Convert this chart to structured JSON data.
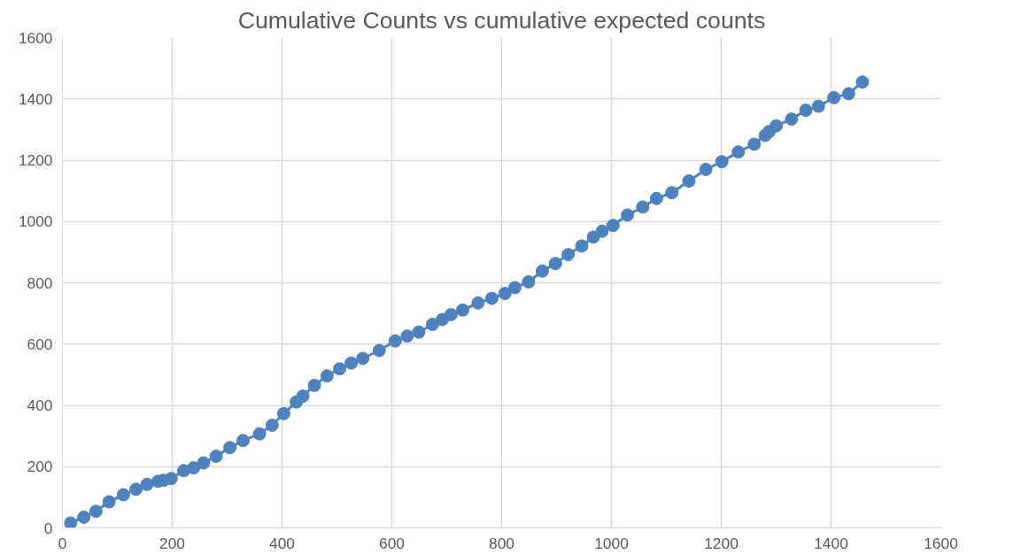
{
  "chart_data": {
    "type": "line",
    "title": "Cumulative Counts vs cumulative expected counts",
    "x": [
      15,
      39,
      61,
      85,
      111,
      134,
      154,
      174,
      184,
      198,
      221,
      239,
      257,
      280,
      305,
      329,
      359,
      382,
      403,
      426,
      438,
      459,
      482,
      505,
      526,
      547,
      577,
      606,
      628,
      649,
      674,
      692,
      708,
      729,
      757,
      782,
      806,
      824,
      849,
      874,
      898,
      921,
      946,
      967,
      983,
      1003,
      1029,
      1057,
      1082,
      1110,
      1141,
      1172,
      1201,
      1231,
      1260,
      1280,
      1287,
      1300,
      1328,
      1354,
      1377,
      1405,
      1432,
      1457
    ],
    "series": [
      {
        "color": "#4f81bd",
        "values": [
          16,
          35,
          54,
          85,
          108,
          126,
          142,
          152,
          155,
          161,
          187,
          196,
          212,
          234,
          262,
          285,
          307,
          335,
          373,
          411,
          430,
          465,
          496,
          519,
          538,
          553,
          579,
          610,
          626,
          639,
          664,
          680,
          696,
          711,
          734,
          749,
          765,
          784,
          803,
          838,
          863,
          892,
          920,
          949,
          968,
          987,
          1021,
          1047,
          1075,
          1094,
          1132,
          1170,
          1195,
          1227,
          1252,
          1281,
          1293,
          1312,
          1334,
          1363,
          1376,
          1404,
          1417,
          1455
        ]
      }
    ],
    "xlim": [
      0,
      1600
    ],
    "ylim": [
      0,
      1600
    ],
    "xticks": [
      0,
      200,
      400,
      600,
      800,
      1000,
      1200,
      1400,
      1600
    ],
    "yticks": [
      0,
      200,
      400,
      600,
      800,
      1000,
      1200,
      1400,
      1600
    ],
    "grid": true,
    "marker": "circle",
    "line_style": "solid"
  }
}
